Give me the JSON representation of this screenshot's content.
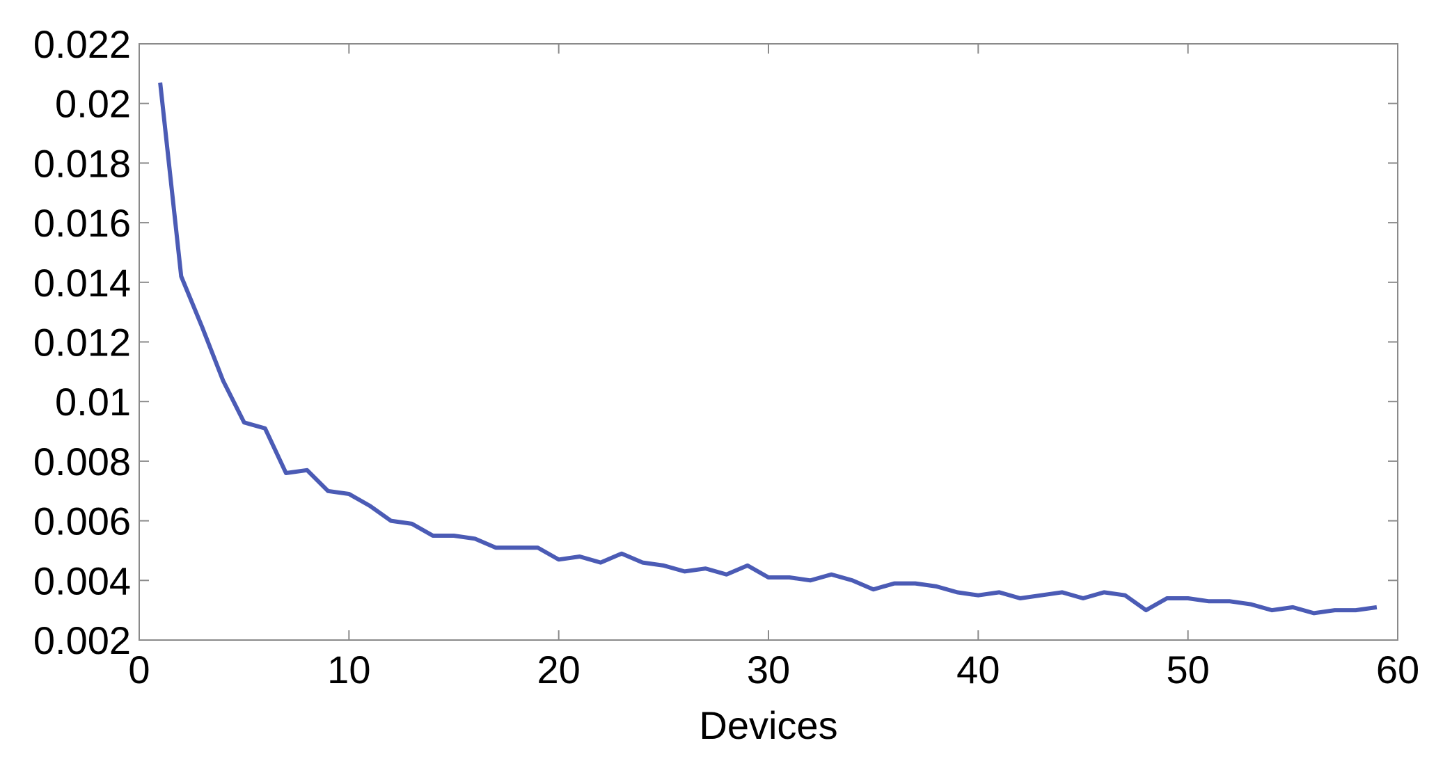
{
  "chart_data": {
    "type": "line",
    "title": "",
    "xlabel": "Devices",
    "ylabel": "",
    "xlim": [
      0,
      60
    ],
    "ylim": [
      0.002,
      0.022
    ],
    "xticks": [
      0,
      10,
      20,
      30,
      40,
      50,
      60
    ],
    "yticks": [
      0.002,
      0.004,
      0.006,
      0.008,
      0.01,
      0.012,
      0.014,
      0.016,
      0.018,
      0.02,
      0.022
    ],
    "xtick_labels": [
      "0",
      "10",
      "20",
      "30",
      "40",
      "50",
      "60"
    ],
    "ytick_labels": [
      "0.002",
      "0.004",
      "0.006",
      "0.008",
      "0.01",
      "0.012",
      "0.014",
      "0.016",
      "0.018",
      "0.02",
      "0.022"
    ],
    "grid": false,
    "legend": "none",
    "series": [
      {
        "color": "#4b5bb5",
        "x": [
          1,
          2,
          3,
          4,
          5,
          6,
          7,
          8,
          9,
          10,
          11,
          12,
          13,
          14,
          15,
          16,
          17,
          18,
          19,
          20,
          21,
          22,
          23,
          24,
          25,
          26,
          27,
          28,
          29,
          30,
          31,
          32,
          33,
          34,
          35,
          36,
          37,
          38,
          39,
          40,
          41,
          42,
          43,
          44,
          45,
          46,
          47,
          48,
          49,
          50,
          51,
          52,
          53,
          54,
          55,
          56,
          57,
          58,
          59
        ],
        "y": [
          0.0207,
          0.0142,
          0.0125,
          0.0107,
          0.0093,
          0.0091,
          0.0076,
          0.0077,
          0.007,
          0.0069,
          0.0065,
          0.006,
          0.0059,
          0.0055,
          0.0055,
          0.0054,
          0.0051,
          0.0051,
          0.0051,
          0.0047,
          0.0048,
          0.0046,
          0.0049,
          0.0046,
          0.0045,
          0.0043,
          0.0044,
          0.0042,
          0.0045,
          0.0041,
          0.0041,
          0.004,
          0.0042,
          0.004,
          0.0037,
          0.0039,
          0.0039,
          0.0038,
          0.0036,
          0.0035,
          0.0036,
          0.0034,
          0.0035,
          0.0036,
          0.0034,
          0.0036,
          0.0035,
          0.003,
          0.0034,
          0.0034,
          0.0033,
          0.0033,
          0.0032,
          0.003,
          0.0031,
          0.0029,
          0.003,
          0.003,
          0.0031
        ]
      }
    ]
  }
}
